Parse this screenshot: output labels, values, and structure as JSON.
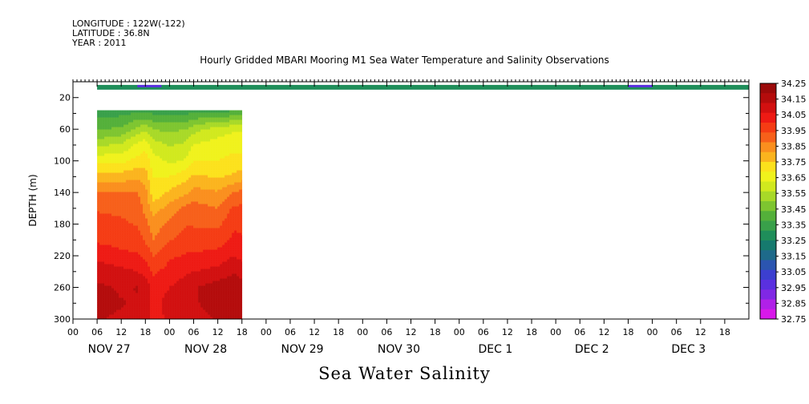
{
  "header": {
    "longitude": "LONGITUDE : 122W(-122)",
    "latitude": "LATITUDE : 36.8N",
    "year": "YEAR : 2011"
  },
  "chart_data": {
    "type": "heatmap",
    "title": "Hourly Gridded MBARI Mooring M1 Sea Water Temperature and Salinity Observations",
    "xlabel": "Sea Water Salinity",
    "ylabel": "DEPTH (m)",
    "x_hour_ticks": [
      "00",
      "06",
      "12",
      "18"
    ],
    "x_days": [
      "NOV 27",
      "NOV 28",
      "NOV 29",
      "NOV 30",
      "DEC  1",
      "DEC  2",
      "DEC  3"
    ],
    "y_ticks": [
      20,
      60,
      100,
      140,
      180,
      220,
      260,
      300
    ],
    "ylim": [
      300,
      0
    ],
    "xlim_hours": [
      0,
      168
    ],
    "colorbar_levels": [
      "34.25",
      "34.15",
      "34.05",
      "33.95",
      "33.85",
      "33.75",
      "33.65",
      "33.55",
      "33.45",
      "33.35",
      "33.25",
      "33.15",
      "33.05",
      "32.95",
      "32.85",
      "32.75"
    ],
    "colorbar_colors": [
      "#9b0a0a",
      "#b40c0c",
      "#d21010",
      "#ee1a14",
      "#f53c14",
      "#f7601a",
      "#fa8f1e",
      "#fbb41e",
      "#fce11c",
      "#f0f21c",
      "#d1e91e",
      "#a8d928",
      "#7ec530",
      "#54b03a",
      "#39a04a",
      "#1f8e5a",
      "#167a6e",
      "#1e6a8a",
      "#2b55b0",
      "#3c3fd0",
      "#5a30e0",
      "#8028e4",
      "#b020e8",
      "#d818ea"
    ],
    "surface_band": {
      "depth_range": [
        4,
        10
      ],
      "x_range_hours": [
        6,
        168
      ],
      "value": 33.3,
      "low_patches": [
        {
          "hours": [
            16,
            22
          ],
          "value": 32.95
        },
        {
          "hours": [
            138,
            144
          ],
          "value": 32.95
        }
      ]
    },
    "profile_block": {
      "x_range_hours": [
        6,
        42
      ],
      "depth_range": [
        36,
        300
      ],
      "hours": [
        6,
        12,
        16,
        18,
        20,
        24,
        28,
        30,
        36,
        40,
        42
      ],
      "depths": [
        36,
        60,
        80,
        100,
        120,
        140,
        160,
        180,
        200,
        220,
        240,
        260,
        280,
        300
      ],
      "values": [
        [
          33.33,
          33.33,
          33.34,
          33.34,
          33.33,
          33.33,
          33.33,
          33.34,
          33.35,
          33.35,
          33.36
        ],
        [
          33.42,
          33.45,
          33.52,
          33.55,
          33.5,
          33.48,
          33.5,
          33.54,
          33.6,
          33.62,
          33.62
        ],
        [
          33.55,
          33.58,
          33.65,
          33.68,
          33.6,
          33.56,
          33.58,
          33.64,
          33.66,
          33.68,
          33.68
        ],
        [
          33.68,
          33.68,
          33.72,
          33.74,
          33.66,
          33.62,
          33.64,
          33.7,
          33.7,
          33.72,
          33.72
        ],
        [
          33.8,
          33.8,
          33.82,
          33.8,
          33.7,
          33.7,
          33.74,
          33.78,
          33.76,
          33.78,
          33.8
        ],
        [
          33.9,
          33.9,
          33.9,
          33.86,
          33.72,
          33.78,
          33.82,
          33.86,
          33.84,
          33.9,
          33.92
        ],
        [
          33.96,
          33.95,
          33.94,
          33.88,
          33.8,
          33.86,
          33.92,
          33.93,
          33.9,
          33.98,
          33.98
        ],
        [
          33.99,
          33.98,
          33.96,
          33.92,
          33.86,
          33.92,
          33.96,
          33.96,
          33.95,
          34.02,
          34.02
        ],
        [
          34.02,
          34.01,
          34.0,
          33.96,
          33.9,
          33.96,
          34.0,
          34.0,
          34.0,
          34.05,
          34.04
        ],
        [
          34.08,
          34.05,
          34.04,
          34.02,
          33.96,
          34.02,
          34.04,
          34.04,
          34.06,
          34.1,
          34.08
        ],
        [
          34.14,
          34.12,
          34.1,
          34.08,
          34.02,
          34.06,
          34.09,
          34.1,
          34.12,
          34.16,
          34.14
        ],
        [
          34.18,
          34.16,
          34.17,
          34.14,
          34.07,
          34.1,
          34.13,
          34.16,
          34.2,
          34.22,
          34.2
        ],
        [
          34.18,
          34.17,
          34.16,
          34.14,
          34.08,
          34.12,
          34.14,
          34.16,
          34.19,
          34.2,
          34.18
        ],
        [
          34.17,
          34.16,
          34.15,
          34.13,
          34.08,
          34.11,
          34.13,
          34.15,
          34.17,
          34.18,
          34.17
        ]
      ]
    },
    "grid": false
  }
}
